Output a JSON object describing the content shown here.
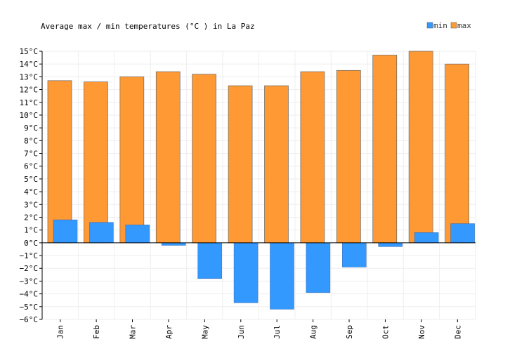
{
  "chart_data": {
    "type": "bar",
    "title": "Average max / min temperatures (°C ) in La Paz",
    "categories": [
      "Jan",
      "Feb",
      "Mar",
      "Apr",
      "May",
      "Jun",
      "Jul",
      "Aug",
      "Sep",
      "Oct",
      "Nov",
      "Dec"
    ],
    "series": [
      {
        "name": "max",
        "color": "#ff9933",
        "values": [
          12.7,
          12.6,
          13.0,
          13.4,
          13.2,
          12.3,
          12.3,
          13.4,
          13.5,
          14.7,
          15.0,
          14.0
        ]
      },
      {
        "name": "min",
        "color": "#3399ff",
        "values": [
          1.8,
          1.6,
          1.4,
          -0.2,
          -2.8,
          -4.7,
          -5.2,
          -3.9,
          -1.9,
          -0.3,
          0.8,
          1.5
        ]
      }
    ],
    "ylim": [
      -6,
      15
    ],
    "ytick_unit": "°C",
    "legend": [
      "min",
      "max"
    ],
    "legend_position": "top-right",
    "grid": true
  }
}
